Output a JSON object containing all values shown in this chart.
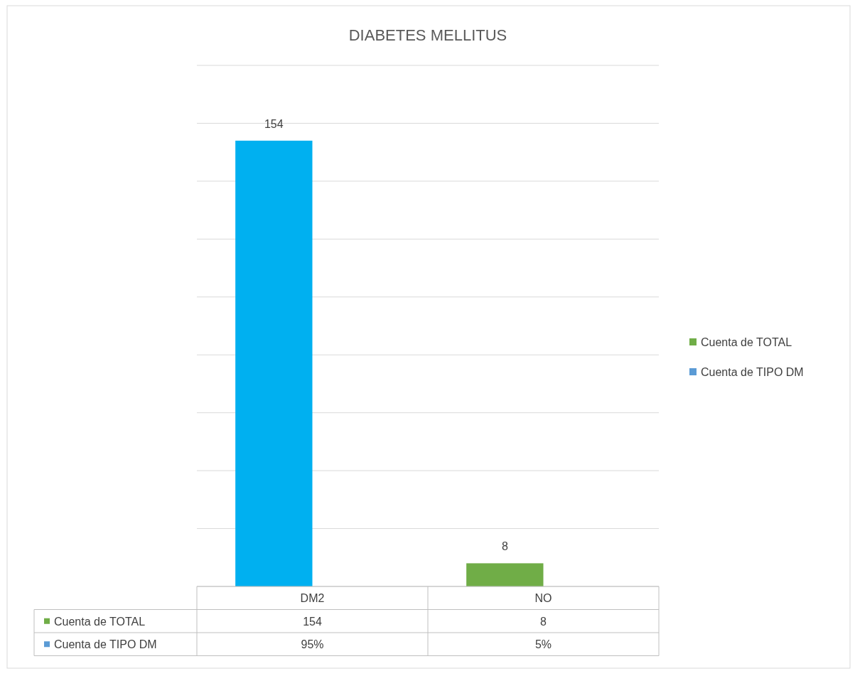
{
  "chart_data": {
    "type": "bar",
    "title": "DIABETES MELLITUS",
    "categories": [
      "DM2",
      "NO"
    ],
    "series": [
      {
        "name": "Cuenta de TOTAL",
        "color": "#70ad47",
        "colors": [
          "#00b0f0",
          "#70ad47"
        ],
        "values": [
          154,
          8
        ],
        "value_labels": [
          "154",
          "8"
        ]
      },
      {
        "name": "Cuenta de TIPO DM",
        "color": "#5b9bd5",
        "values": [
          null,
          null
        ],
        "value_labels": [
          "95%",
          "5%"
        ]
      }
    ],
    "ylim": [
      0,
      180
    ],
    "yticks": [
      {
        "value": 0,
        "label": null
      },
      {
        "value": 20,
        "label": null
      },
      {
        "value": 40,
        "label": null
      },
      {
        "value": 60,
        "label": null
      },
      {
        "value": 80,
        "label": null
      },
      {
        "value": 100,
        "label": null
      },
      {
        "value": 120,
        "label": null
      },
      {
        "value": 140,
        "label": null
      },
      {
        "value": 160,
        "label": null
      },
      {
        "value": 180,
        "label": null
      }
    ],
    "grid": "y",
    "legend": "right"
  }
}
